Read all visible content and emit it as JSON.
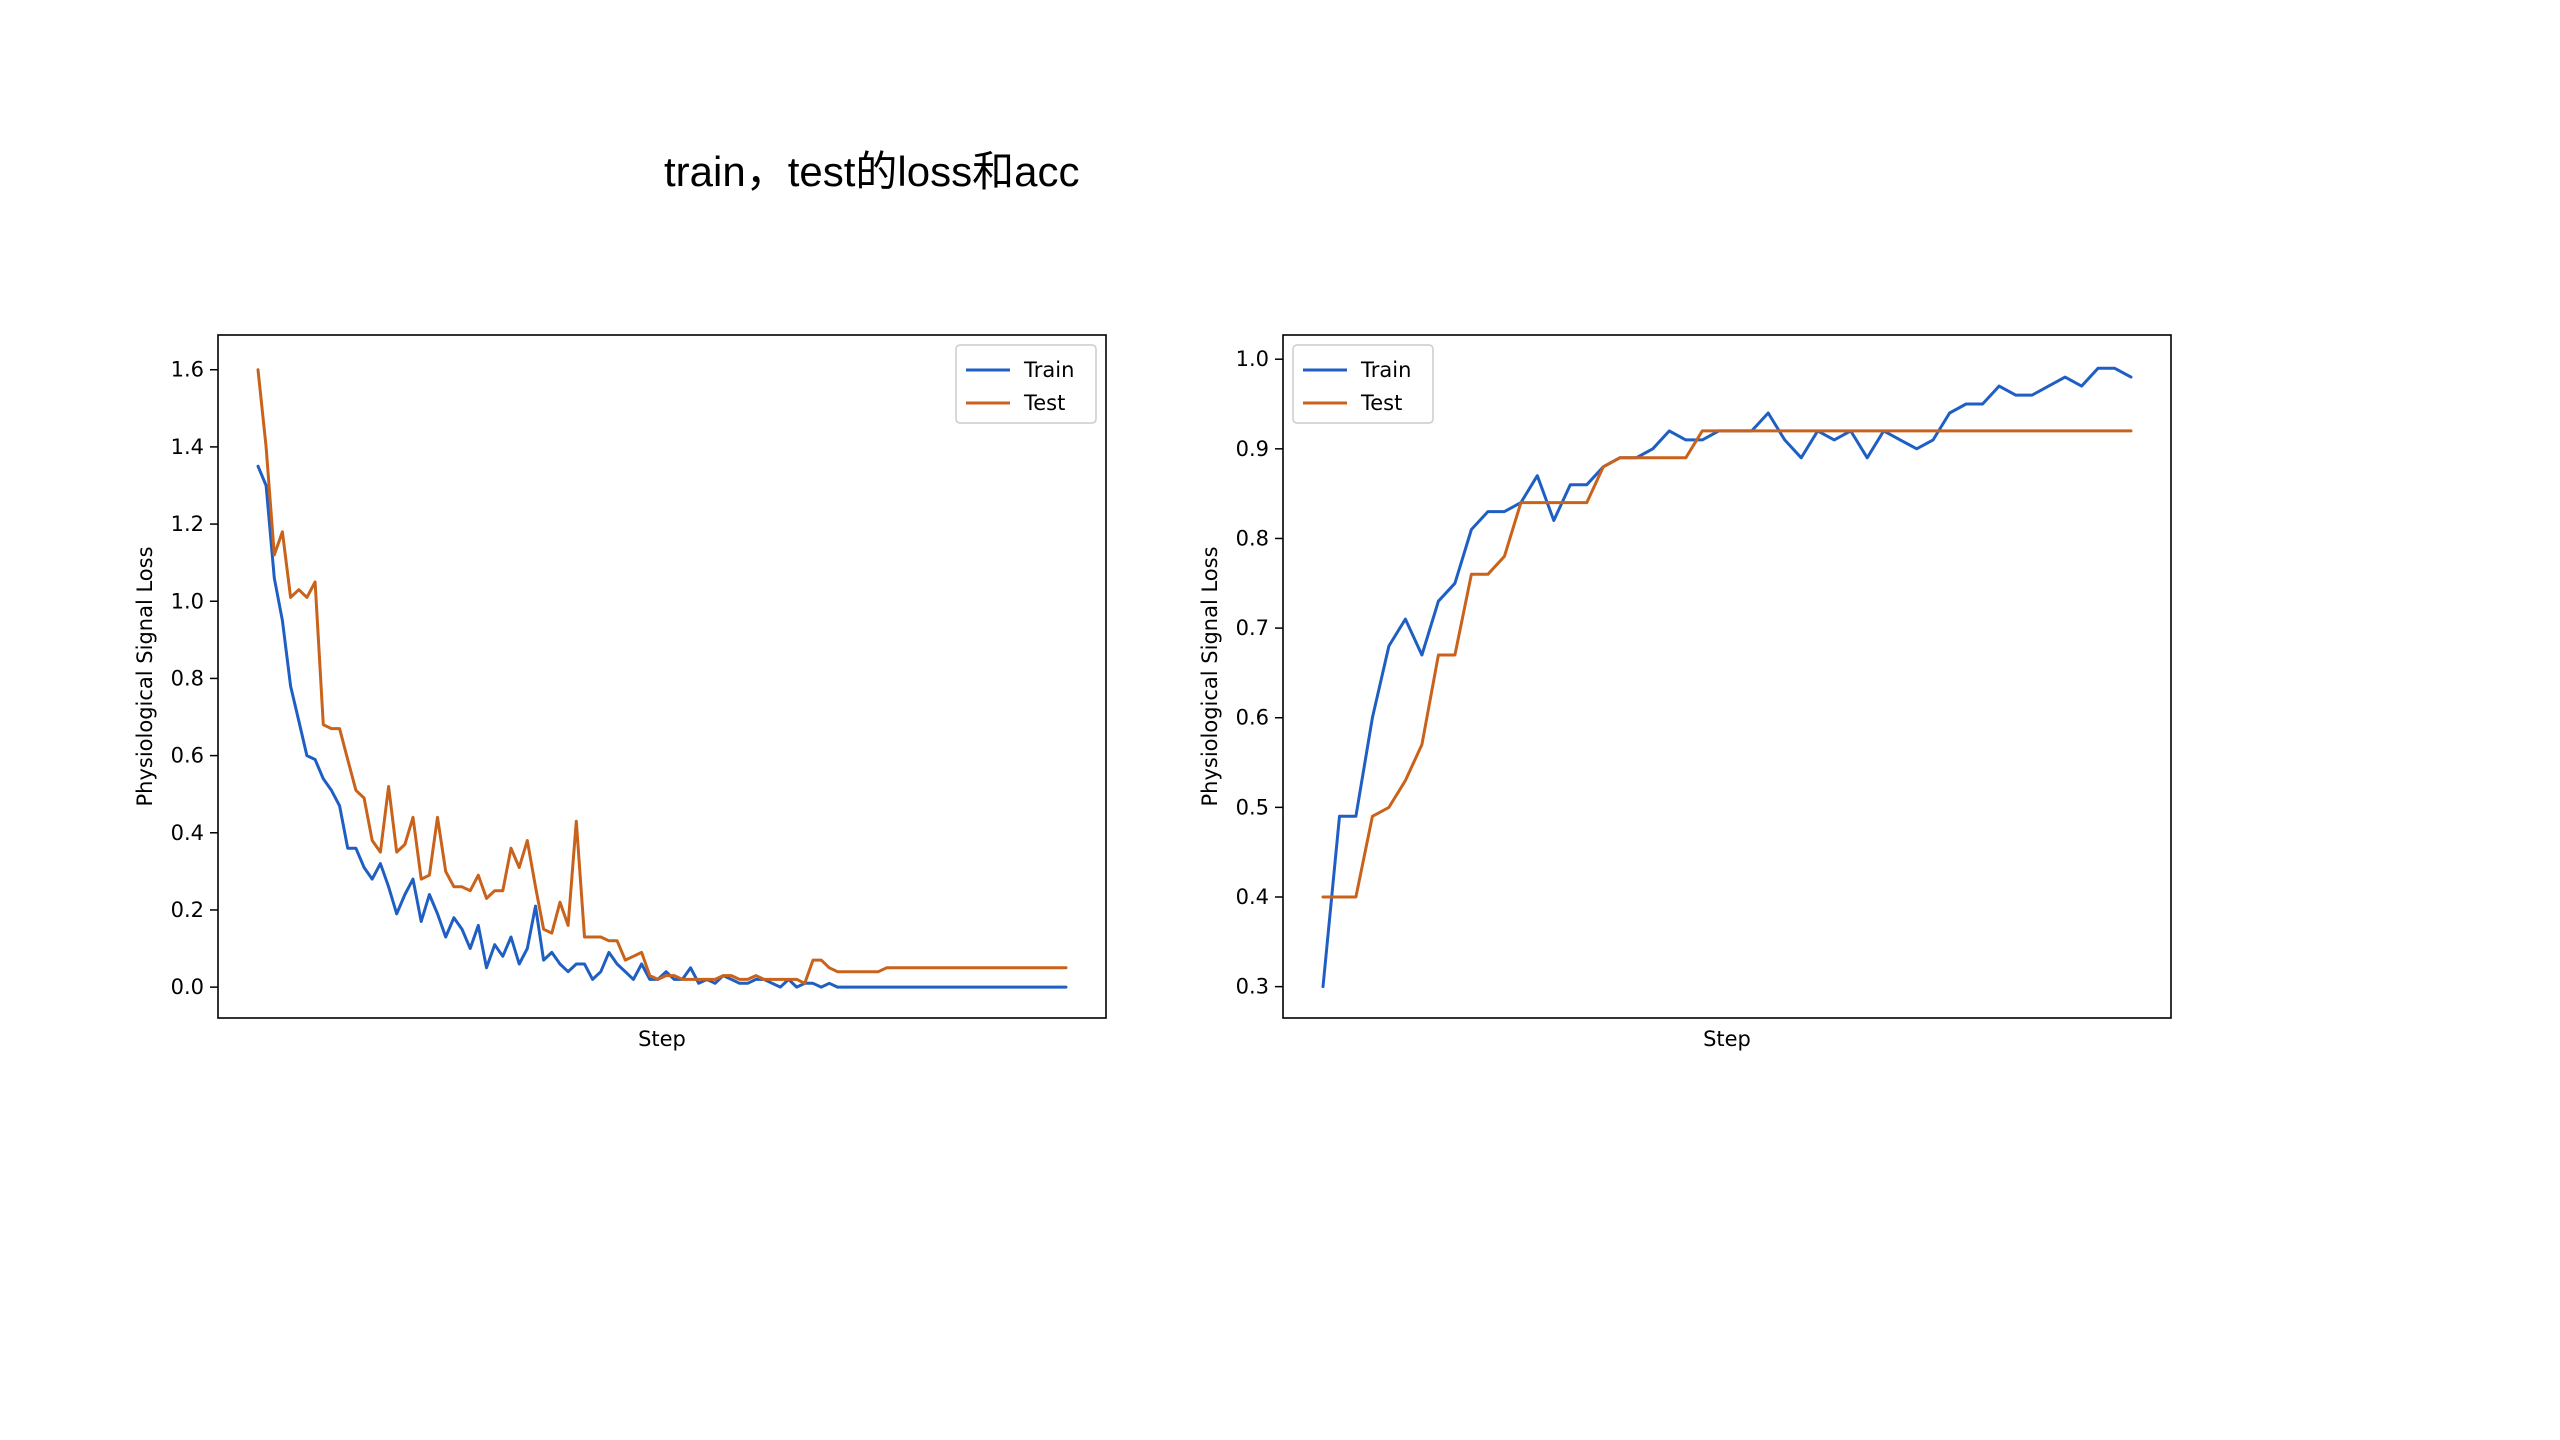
{
  "slide": {
    "title": "train，test的loss和acc"
  },
  "colors": {
    "train": "#1f5fc4",
    "test": "#c9621b"
  },
  "chart_data": [
    {
      "type": "line",
      "title": "",
      "xlabel": "Step",
      "ylabel": "Physiological Signal Loss",
      "xticks_visible": false,
      "ylim": [
        -0.08,
        1.69
      ],
      "yticks": [
        0.0,
        0.2,
        0.4,
        0.6,
        0.8,
        1.0,
        1.2,
        1.4,
        1.6
      ],
      "ytick_labels": [
        "0.0",
        "0.2",
        "0.4",
        "0.6",
        "0.8",
        "1.0",
        "1.2",
        "1.4",
        "1.6"
      ],
      "grid": false,
      "legend_position": "upper right",
      "series": [
        {
          "name": "Train",
          "color": "#1f5fc4",
          "values": [
            1.35,
            1.3,
            1.06,
            0.95,
            0.78,
            0.69,
            0.6,
            0.59,
            0.54,
            0.51,
            0.47,
            0.36,
            0.36,
            0.31,
            0.28,
            0.32,
            0.26,
            0.19,
            0.24,
            0.28,
            0.17,
            0.24,
            0.19,
            0.13,
            0.18,
            0.15,
            0.1,
            0.16,
            0.05,
            0.11,
            0.08,
            0.13,
            0.06,
            0.1,
            0.21,
            0.07,
            0.09,
            0.06,
            0.04,
            0.06,
            0.06,
            0.02,
            0.04,
            0.09,
            0.06,
            0.04,
            0.02,
            0.06,
            0.02,
            0.02,
            0.04,
            0.02,
            0.02,
            0.05,
            0.01,
            0.02,
            0.01,
            0.03,
            0.02,
            0.01,
            0.01,
            0.02,
            0.02,
            0.01,
            0.0,
            0.02,
            0.0,
            0.01,
            0.01,
            0.0,
            0.01,
            0.0,
            0.0,
            0.0,
            0.0,
            0.0,
            0.0,
            0.0,
            0.0,
            0.0,
            0.0,
            0.0,
            0.0,
            0.0,
            0.0,
            0.0,
            0.0,
            0.0,
            0.0,
            0.0,
            0.0,
            0.0,
            0.0,
            0.0,
            0.0,
            0.0,
            0.0,
            0.0,
            0.0,
            0.0
          ]
        },
        {
          "name": "Test",
          "color": "#c9621b",
          "values": [
            1.6,
            1.4,
            1.12,
            1.18,
            1.01,
            1.03,
            1.01,
            1.05,
            0.68,
            0.67,
            0.67,
            0.59,
            0.51,
            0.49,
            0.38,
            0.35,
            0.52,
            0.35,
            0.37,
            0.44,
            0.28,
            0.29,
            0.44,
            0.3,
            0.26,
            0.26,
            0.25,
            0.29,
            0.23,
            0.25,
            0.25,
            0.36,
            0.31,
            0.38,
            0.26,
            0.15,
            0.14,
            0.22,
            0.16,
            0.43,
            0.13,
            0.13,
            0.13,
            0.12,
            0.12,
            0.07,
            0.08,
            0.09,
            0.03,
            0.02,
            0.03,
            0.03,
            0.02,
            0.02,
            0.02,
            0.02,
            0.02,
            0.03,
            0.03,
            0.02,
            0.02,
            0.03,
            0.02,
            0.02,
            0.02,
            0.02,
            0.02,
            0.01,
            0.07,
            0.07,
            0.05,
            0.04,
            0.04,
            0.04,
            0.04,
            0.04,
            0.04,
            0.05,
            0.05,
            0.05,
            0.05,
            0.05,
            0.05,
            0.05,
            0.05,
            0.05,
            0.05,
            0.05,
            0.05,
            0.05,
            0.05,
            0.05,
            0.05,
            0.05,
            0.05,
            0.05,
            0.05,
            0.05,
            0.05,
            0.05
          ]
        }
      ]
    },
    {
      "type": "line",
      "title": "",
      "xlabel": "Step",
      "ylabel": "Physiological Signal Loss",
      "xticks_visible": false,
      "ylim": [
        0.265,
        1.027
      ],
      "yticks": [
        0.3,
        0.4,
        0.5,
        0.6,
        0.7,
        0.8,
        0.9,
        1.0
      ],
      "ytick_labels": [
        "0.3",
        "0.4",
        "0.5",
        "0.6",
        "0.7",
        "0.8",
        "0.9",
        "1.0"
      ],
      "grid": false,
      "legend_position": "upper left",
      "series": [
        {
          "name": "Train",
          "color": "#1f5fc4",
          "values": [
            0.3,
            0.49,
            0.49,
            0.6,
            0.68,
            0.71,
            0.67,
            0.73,
            0.75,
            0.81,
            0.83,
            0.83,
            0.84,
            0.87,
            0.82,
            0.86,
            0.86,
            0.88,
            0.89,
            0.89,
            0.9,
            0.92,
            0.91,
            0.91,
            0.92,
            0.92,
            0.92,
            0.94,
            0.91,
            0.89,
            0.92,
            0.91,
            0.92,
            0.89,
            0.92,
            0.91,
            0.9,
            0.91,
            0.94,
            0.95,
            0.95,
            0.97,
            0.96,
            0.96,
            0.97,
            0.98,
            0.97,
            0.99,
            0.99,
            0.98
          ]
        },
        {
          "name": "Test",
          "color": "#c9621b",
          "values": [
            0.4,
            0.4,
            0.4,
            0.49,
            0.5,
            0.53,
            0.57,
            0.67,
            0.67,
            0.76,
            0.76,
            0.78,
            0.84,
            0.84,
            0.84,
            0.84,
            0.84,
            0.88,
            0.89,
            0.89,
            0.89,
            0.89,
            0.89,
            0.92,
            0.92,
            0.92,
            0.92,
            0.92,
            0.92,
            0.92,
            0.92,
            0.92,
            0.92,
            0.92,
            0.92,
            0.92,
            0.92,
            0.92,
            0.92,
            0.92,
            0.92,
            0.92,
            0.92,
            0.92,
            0.92,
            0.92,
            0.92,
            0.92,
            0.92,
            0.92
          ]
        }
      ]
    }
  ]
}
